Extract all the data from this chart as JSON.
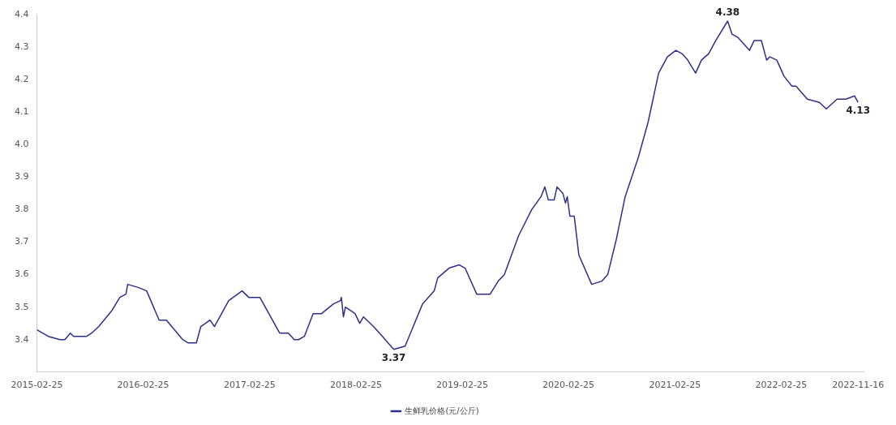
{
  "chart_data": {
    "type": "line",
    "x": [
      "2015-02-25",
      "2015-04-05",
      "2015-05-15",
      "2015-06-01",
      "2015-06-20",
      "2015-07-01",
      "2015-08-15",
      "2015-09-01",
      "2015-09-25",
      "2015-11-10",
      "2015-12-07",
      "2015-12-28",
      "2016-01-03",
      "2016-02-10",
      "2016-03-08",
      "2016-04-20",
      "2016-05-15",
      "2016-07-10",
      "2016-07-28",
      "2016-08-26",
      "2016-09-10",
      "2016-10-12",
      "2016-10-27",
      "2016-12-15",
      "2017-01-30",
      "2017-02-22",
      "2017-04-01",
      "2017-06-08",
      "2017-07-08",
      "2017-07-28",
      "2017-08-12",
      "2017-09-01",
      "2017-10-01",
      "2017-10-30",
      "2017-12-10",
      "2018-01-03",
      "2018-01-06",
      "2018-01-13",
      "2018-01-20",
      "2018-02-22",
      "2018-03-10",
      "2018-03-23",
      "2018-04-27",
      "2018-05-27",
      "2018-07-05",
      "2018-08-13",
      "2018-10-12",
      "2018-11-21",
      "2018-12-03",
      "2019-01-11",
      "2019-02-15",
      "2019-03-07",
      "2019-04-16",
      "2019-06-01",
      "2019-06-29",
      "2019-07-20",
      "2019-09-07",
      "2019-10-22",
      "2019-11-23",
      "2019-12-06",
      "2019-12-18",
      "2020-01-07",
      "2020-01-17",
      "2020-02-06",
      "2020-02-15",
      "2020-02-21",
      "2020-03-01",
      "2020-03-16",
      "2020-04-01",
      "2020-05-15",
      "2020-06-19",
      "2020-07-09",
      "2020-08-08",
      "2020-09-07",
      "2020-10-22",
      "2020-11-25",
      "2020-12-31",
      "2021-01-30",
      "2021-02-28",
      "2021-03-21",
      "2021-04-10",
      "2021-05-07",
      "2021-05-27",
      "2021-06-21",
      "2021-07-15",
      "2021-08-25",
      "2021-09-09",
      "2021-09-29",
      "2021-11-08",
      "2021-11-24",
      "2021-12-19",
      "2022-01-06",
      "2022-01-17",
      "2022-02-10",
      "2022-03-07",
      "2022-04-03",
      "2022-04-17",
      "2022-05-26",
      "2022-07-06",
      "2022-07-30",
      "2022-09-05",
      "2022-10-05",
      "2022-11-04",
      "2022-11-16"
    ],
    "series": [
      {
        "name": "生鲜乳价格(元/公斤)",
        "color": "#2e2f8a",
        "values": [
          3.43,
          3.41,
          3.4,
          3.4,
          3.42,
          3.41,
          3.41,
          3.42,
          3.44,
          3.49,
          3.53,
          3.54,
          3.57,
          3.56,
          3.55,
          3.46,
          3.46,
          3.4,
          3.39,
          3.39,
          3.44,
          3.46,
          3.44,
          3.52,
          3.55,
          3.53,
          3.53,
          3.42,
          3.42,
          3.4,
          3.4,
          3.41,
          3.48,
          3.48,
          3.51,
          3.52,
          3.53,
          3.47,
          3.5,
          3.48,
          3.45,
          3.47,
          3.44,
          3.41,
          3.37,
          3.38,
          3.51,
          3.55,
          3.59,
          3.62,
          3.63,
          3.62,
          3.54,
          3.54,
          3.58,
          3.6,
          3.72,
          3.8,
          3.84,
          3.87,
          3.83,
          3.83,
          3.87,
          3.85,
          3.82,
          3.84,
          3.78,
          3.78,
          3.66,
          3.57,
          3.58,
          3.6,
          3.71,
          3.84,
          3.96,
          4.07,
          4.22,
          4.27,
          4.29,
          4.28,
          4.26,
          4.22,
          4.26,
          4.28,
          4.32,
          4.38,
          4.34,
          4.33,
          4.29,
          4.32,
          4.32,
          4.26,
          4.27,
          4.26,
          4.21,
          4.18,
          4.18,
          4.14,
          4.13,
          4.11,
          4.14,
          4.14,
          4.15,
          4.13
        ]
      }
    ],
    "xlim": [
      "2015-02-25",
      "2022-12-05"
    ],
    "xticks": [
      "2015-02-25",
      "2016-02-25",
      "2017-02-25",
      "2018-02-25",
      "2019-02-25",
      "2020-02-25",
      "2021-02-25",
      "2022-02-25",
      "2022-11-16"
    ],
    "ylim": [
      3.3,
      4.4
    ],
    "yticks": [
      3.4,
      3.5,
      3.6,
      3.7,
      3.8,
      3.9,
      {
        "value": 4.0,
        "label": "4.0"
      },
      4.1,
      4.2,
      4.3,
      4.4
    ],
    "annotations": [
      {
        "text": "3.37",
        "x": "2018-07-05",
        "y": 3.37
      },
      {
        "text": "4.38",
        "x": "2021-08-25",
        "y": 4.38
      },
      {
        "text": "4.13",
        "x": "2022-11-16",
        "y": 4.13
      }
    ],
    "legend": "bottom",
    "grid": false,
    "marker": "none",
    "line_style": "solid"
  }
}
